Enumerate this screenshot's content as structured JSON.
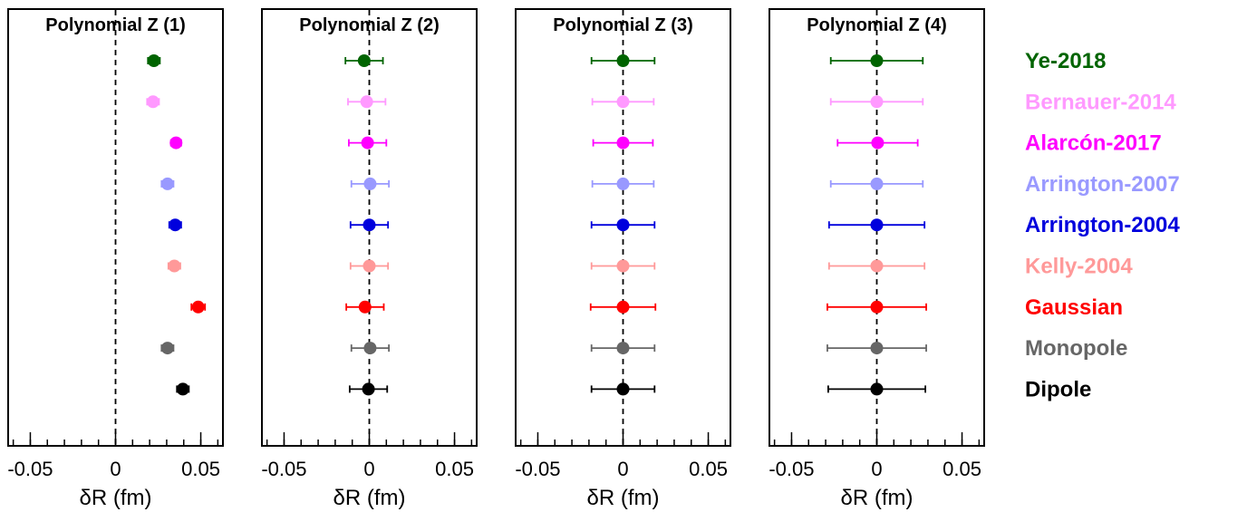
{
  "models": [
    {
      "name": "Ye-2018",
      "color": "#006400"
    },
    {
      "name": "Bernauer-2014",
      "color": "#ff99ff"
    },
    {
      "name": "Alarcón-2017",
      "color": "#ff00ff"
    },
    {
      "name": "Arrington-2007",
      "color": "#9999ff"
    },
    {
      "name": "Arrington-2004",
      "color": "#0000dd"
    },
    {
      "name": "Kelly-2004",
      "color": "#ff9999"
    },
    {
      "name": "Gaussian",
      "color": "#ff0000"
    },
    {
      "name": "Monopole",
      "color": "#666666"
    },
    {
      "name": "Dipole",
      "color": "#000000"
    }
  ],
  "chart_data": [
    {
      "type": "scatter",
      "title": "Polynomial Z (1)",
      "xlabel": "δR (fm)",
      "xlim": [
        -0.063,
        0.063
      ],
      "xticks": [
        -0.05,
        0,
        0.05
      ],
      "xtick_labels": [
        "-0.05",
        "0",
        "0.05"
      ],
      "reference_line_x": 0,
      "points": [
        {
          "model": "Ye-2018",
          "value": 0.0225,
          "error": 0.0035
        },
        {
          "model": "Bernauer-2014",
          "value": 0.022,
          "error": 0.0035
        },
        {
          "model": "Alarcón-2017",
          "value": 0.0355,
          "error": 0.003
        },
        {
          "model": "Arrington-2007",
          "value": 0.0305,
          "error": 0.0035
        },
        {
          "model": "Arrington-2004",
          "value": 0.035,
          "error": 0.0035
        },
        {
          "model": "Kelly-2004",
          "value": 0.0345,
          "error": 0.0035
        },
        {
          "model": "Gaussian",
          "value": 0.0485,
          "error": 0.004
        },
        {
          "model": "Monopole",
          "value": 0.0305,
          "error": 0.0035
        },
        {
          "model": "Dipole",
          "value": 0.0395,
          "error": 0.0035
        }
      ]
    },
    {
      "type": "scatter",
      "title": "Polynomial Z (2)",
      "xlabel": "δR (fm)",
      "xlim": [
        -0.063,
        0.063
      ],
      "xticks": [
        -0.05,
        0,
        0.05
      ],
      "xtick_labels": [
        "-0.05",
        "0",
        "0.05"
      ],
      "reference_line_x": 0,
      "points": [
        {
          "model": "Ye-2018",
          "value": -0.003,
          "error": 0.011
        },
        {
          "model": "Bernauer-2014",
          "value": -0.0015,
          "error": 0.011
        },
        {
          "model": "Alarcón-2017",
          "value": -0.001,
          "error": 0.011
        },
        {
          "model": "Arrington-2007",
          "value": 0.0005,
          "error": 0.011
        },
        {
          "model": "Arrington-2004",
          "value": 0.0,
          "error": 0.011
        },
        {
          "model": "Kelly-2004",
          "value": 0.0,
          "error": 0.011
        },
        {
          "model": "Gaussian",
          "value": -0.0025,
          "error": 0.011
        },
        {
          "model": "Monopole",
          "value": 0.0005,
          "error": 0.011
        },
        {
          "model": "Dipole",
          "value": -0.0005,
          "error": 0.011
        }
      ]
    },
    {
      "type": "scatter",
      "title": "Polynomial Z (3)",
      "xlabel": "δR (fm)",
      "xlim": [
        -0.063,
        0.063
      ],
      "xticks": [
        -0.05,
        0,
        0.05
      ],
      "xtick_labels": [
        "-0.05",
        "0",
        "0.05"
      ],
      "reference_line_x": 0,
      "points": [
        {
          "model": "Ye-2018",
          "value": 0.0,
          "error": 0.0185
        },
        {
          "model": "Bernauer-2014",
          "value": 0.0,
          "error": 0.018
        },
        {
          "model": "Alarcón-2017",
          "value": 0.0,
          "error": 0.0175
        },
        {
          "model": "Arrington-2007",
          "value": 0.0,
          "error": 0.018
        },
        {
          "model": "Arrington-2004",
          "value": 0.0,
          "error": 0.0185
        },
        {
          "model": "Kelly-2004",
          "value": 0.0,
          "error": 0.0185
        },
        {
          "model": "Gaussian",
          "value": 0.0,
          "error": 0.019
        },
        {
          "model": "Monopole",
          "value": 0.0,
          "error": 0.0185
        },
        {
          "model": "Dipole",
          "value": 0.0,
          "error": 0.0185
        }
      ]
    },
    {
      "type": "scatter",
      "title": "Polynomial Z (4)",
      "xlabel": "δR (fm)",
      "xlim": [
        -0.063,
        0.063
      ],
      "xticks": [
        -0.05,
        0,
        0.05
      ],
      "xtick_labels": [
        "-0.05",
        "0",
        "0.05"
      ],
      "reference_line_x": 0,
      "points": [
        {
          "model": "Ye-2018",
          "value": 0.0,
          "error": 0.027
        },
        {
          "model": "Bernauer-2014",
          "value": 0.0,
          "error": 0.027
        },
        {
          "model": "Alarcón-2017",
          "value": 0.0005,
          "error": 0.0235
        },
        {
          "model": "Arrington-2007",
          "value": 0.0,
          "error": 0.027
        },
        {
          "model": "Arrington-2004",
          "value": 0.0,
          "error": 0.028
        },
        {
          "model": "Kelly-2004",
          "value": 0.0,
          "error": 0.028
        },
        {
          "model": "Gaussian",
          "value": 0.0,
          "error": 0.029
        },
        {
          "model": "Monopole",
          "value": 0.0,
          "error": 0.029
        },
        {
          "model": "Dipole",
          "value": 0.0,
          "error": 0.0285
        }
      ]
    }
  ]
}
